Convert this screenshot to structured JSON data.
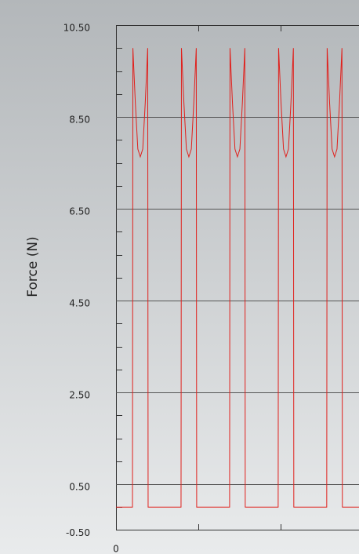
{
  "chart_data": {
    "type": "line",
    "y_label": "Force (N)",
    "x": [
      0,
      0.2,
      0.205,
      0.235,
      0.265,
      0.295,
      0.325,
      0.355,
      0.385,
      0.39,
      0.79,
      0.795,
      0.825,
      0.855,
      0.885,
      0.915,
      0.945,
      0.975,
      0.98,
      1.38,
      1.385,
      1.415,
      1.445,
      1.475,
      1.505,
      1.535,
      1.565,
      1.57,
      1.97,
      1.975,
      2.005,
      2.035,
      2.065,
      2.095,
      2.125,
      2.155,
      2.16,
      2.56,
      2.565,
      2.595,
      2.625,
      2.655,
      2.685,
      2.715,
      2.745,
      2.75,
      2.952
    ],
    "series": [
      {
        "color": "#e0201c",
        "values": [
          0,
          0,
          10,
          8.8,
          7.8,
          7.63,
          7.8,
          8.8,
          10,
          0,
          0,
          10,
          8.8,
          7.8,
          7.63,
          7.8,
          8.8,
          10,
          0,
          0,
          10,
          8.8,
          7.8,
          7.63,
          7.8,
          8.8,
          10,
          0,
          0,
          10,
          8.8,
          7.8,
          7.63,
          7.8,
          8.8,
          10,
          0,
          0,
          10,
          8.8,
          7.8,
          7.63,
          7.8,
          8.8,
          10,
          0,
          0
        ]
      }
    ],
    "xlim": [
      0,
      2.952
    ],
    "xticks": [
      0
    ],
    "ylim": [
      -0.5,
      10.5
    ],
    "yticks": [
      {
        "value": -0.5,
        "label": "-0.50"
      },
      {
        "value": 0.5,
        "label": "0.50"
      },
      {
        "value": 2.5,
        "label": "2.50"
      },
      {
        "value": 4.5,
        "label": "4.50"
      },
      {
        "value": 6.5,
        "label": "6.50"
      },
      {
        "value": 8.5,
        "label": "8.50"
      },
      {
        "value": 10.5,
        "label": "10.50"
      }
    ],
    "grid": true
  }
}
